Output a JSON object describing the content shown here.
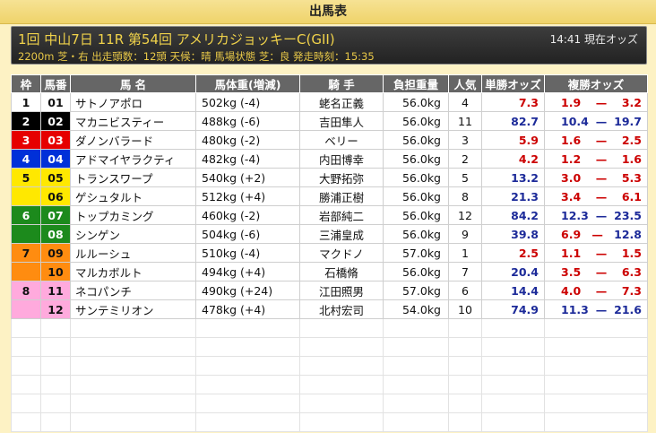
{
  "page_title": "出馬表",
  "race_info": {
    "title": "1回 中山7日 11R 第54回 アメリカジョッキーC(GII)",
    "odds_time": "14:41 現在オッズ",
    "conditions": "2200m 芝・右 出走頭数：12頭 天候：晴 馬場状態 芝：良 発走時刻：15:35"
  },
  "headers": {
    "waku": "枠",
    "umaban": "馬番",
    "horse_name": "馬 名",
    "weight": "馬体重(増減)",
    "jockey": "騎 手",
    "kinryo": "負担重量",
    "ninki": "人気",
    "tansho": "単勝オッズ",
    "fukusho": "複勝オッズ"
  },
  "colors": {
    "waku1": "#ffffff",
    "waku2": "#000000",
    "waku3": "#e60000",
    "waku4": "#0030d8",
    "waku5": "#ffe800",
    "waku6": "#1c8a1c",
    "waku7": "#ff8c10",
    "waku8": "#ffaadd",
    "odds_low": "#cc0000",
    "odds_high": "#1c2a99"
  },
  "horses": [
    {
      "waku": "1",
      "umaban": "01",
      "name": "サトノアポロ",
      "weight": "502kg (-4)",
      "jockey": "蛯名正義",
      "kinryo": "56.0kg",
      "ninki": "4",
      "tansho": "7.3",
      "fuku_low": "1.9",
      "fuku_sep": "—",
      "fuku_high": "3.2"
    },
    {
      "waku": "2",
      "umaban": "02",
      "name": "マカニビスティー",
      "weight": "488kg (-6)",
      "jockey": "吉田隼人",
      "kinryo": "56.0kg",
      "ninki": "11",
      "tansho": "82.7",
      "fuku_low": "10.4",
      "fuku_sep": "—",
      "fuku_high": "19.7"
    },
    {
      "waku": "3",
      "umaban": "03",
      "name": "ダノンバラード",
      "weight": "480kg (-2)",
      "jockey": "ベリー",
      "kinryo": "56.0kg",
      "ninki": "3",
      "tansho": "5.9",
      "fuku_low": "1.6",
      "fuku_sep": "—",
      "fuku_high": "2.5"
    },
    {
      "waku": "4",
      "umaban": "04",
      "name": "アドマイヤラクティ",
      "weight": "482kg (-4)",
      "jockey": "内田博幸",
      "kinryo": "56.0kg",
      "ninki": "2",
      "tansho": "4.2",
      "fuku_low": "1.2",
      "fuku_sep": "—",
      "fuku_high": "1.6"
    },
    {
      "waku": "5",
      "umaban": "05",
      "name": "トランスワープ",
      "weight": "540kg (+2)",
      "jockey": "大野拓弥",
      "kinryo": "56.0kg",
      "ninki": "5",
      "tansho": "13.2",
      "fuku_low": "3.0",
      "fuku_sep": "—",
      "fuku_high": "5.3"
    },
    {
      "waku": "",
      "umaban": "06",
      "name": "ゲシュタルト",
      "weight": "512kg (+4)",
      "jockey": "勝浦正樹",
      "kinryo": "56.0kg",
      "ninki": "8",
      "tansho": "21.3",
      "fuku_low": "3.4",
      "fuku_sep": "—",
      "fuku_high": "6.1"
    },
    {
      "waku": "6",
      "umaban": "07",
      "name": "トップカミング",
      "weight": "460kg (-2)",
      "jockey": "岩部純二",
      "kinryo": "56.0kg",
      "ninki": "12",
      "tansho": "84.2",
      "fuku_low": "12.3",
      "fuku_sep": "—",
      "fuku_high": "23.5"
    },
    {
      "waku": "",
      "umaban": "08",
      "name": "シンゲン",
      "weight": "504kg (-6)",
      "jockey": "三浦皇成",
      "kinryo": "56.0kg",
      "ninki": "9",
      "tansho": "39.8",
      "fuku_low": "6.9",
      "fuku_sep": "—",
      "fuku_high": "12.8"
    },
    {
      "waku": "7",
      "umaban": "09",
      "name": "ルルーシュ",
      "weight": "510kg (-4)",
      "jockey": "マクドノ",
      "kinryo": "57.0kg",
      "ninki": "1",
      "tansho": "2.5",
      "fuku_low": "1.1",
      "fuku_sep": "—",
      "fuku_high": "1.5"
    },
    {
      "waku": "",
      "umaban": "10",
      "name": "マルカボルト",
      "weight": "494kg (+4)",
      "jockey": "石橋脩",
      "kinryo": "56.0kg",
      "ninki": "7",
      "tansho": "20.4",
      "fuku_low": "3.5",
      "fuku_sep": "—",
      "fuku_high": "6.3"
    },
    {
      "waku": "8",
      "umaban": "11",
      "name": "ネコパンチ",
      "weight": "490kg (+24)",
      "jockey": "江田照男",
      "kinryo": "57.0kg",
      "ninki": "6",
      "tansho": "14.4",
      "fuku_low": "4.0",
      "fuku_sep": "—",
      "fuku_high": "7.3"
    },
    {
      "waku": "",
      "umaban": "12",
      "name": "サンテミリオン",
      "weight": "478kg (+4)",
      "jockey": "北村宏司",
      "kinryo": "54.0kg",
      "ninki": "10",
      "tansho": "74.9",
      "fuku_low": "11.3",
      "fuku_sep": "—",
      "fuku_high": "21.6"
    }
  ]
}
